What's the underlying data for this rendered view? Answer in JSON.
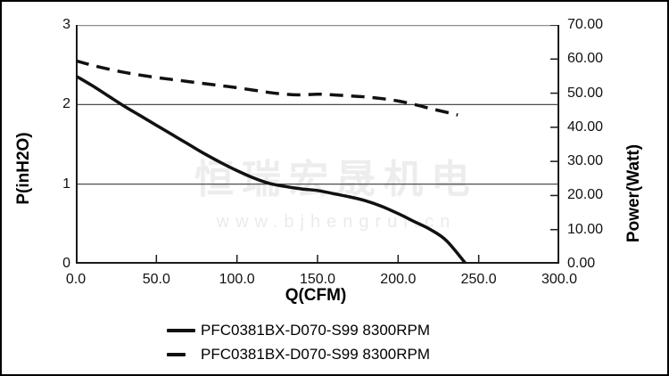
{
  "watermark": {
    "brand": "恒瑞宏晟机电",
    "url": "www.bjhengrui.cn"
  },
  "legend": {
    "items": [
      {
        "label": "PFC0381BX-D070-S99 8300RPM",
        "line_style": "solid"
      },
      {
        "label": "PFC0381BX-D070-S99 8300RPM",
        "line_style": "dashed"
      }
    ]
  },
  "chart_data": {
    "type": "line",
    "title": "",
    "grid": "horizontal gridlines at left-axis 1 and 2",
    "legend_position": "bottom",
    "x_axis": {
      "label": "Q(CFM)",
      "min": 0,
      "max": 300,
      "ticks": [
        0,
        50,
        100,
        150,
        200,
        250,
        300
      ],
      "tick_labels": [
        "0.0",
        "50.0",
        "100.0",
        "150.0",
        "200.0",
        "250.0",
        "300.0"
      ]
    },
    "y_left_axis": {
      "label": "P(inH2O)",
      "min": 0,
      "max": 3,
      "ticks": [
        3,
        2,
        1,
        0
      ],
      "tick_labels": [
        "3",
        "2",
        "1",
        "0"
      ],
      "gridline_values": [
        2,
        1
      ]
    },
    "y_right_axis": {
      "label": "Power(Watt)",
      "min": 0,
      "max": 70,
      "ticks": [
        70,
        60,
        50,
        40,
        30,
        20,
        10,
        0
      ],
      "tick_labels": [
        "70.00",
        "60.00",
        "50.00",
        "40.00",
        "30.00",
        "20.00",
        "10.00",
        "0.00"
      ]
    },
    "series": [
      {
        "name": "PFC0381BX-D070-S99 8300RPM (static pressure)",
        "axis": "left",
        "line_style": "solid",
        "color": "#111111",
        "points": [
          [
            0,
            2.36
          ],
          [
            10,
            2.24
          ],
          [
            20,
            2.11
          ],
          [
            30,
            1.98
          ],
          [
            40,
            1.86
          ],
          [
            50,
            1.74
          ],
          [
            60,
            1.62
          ],
          [
            70,
            1.5
          ],
          [
            80,
            1.38
          ],
          [
            90,
            1.27
          ],
          [
            100,
            1.17
          ],
          [
            110,
            1.08
          ],
          [
            120,
            1.01
          ],
          [
            130,
            0.97
          ],
          [
            140,
            0.94
          ],
          [
            150,
            0.92
          ],
          [
            160,
            0.88
          ],
          [
            170,
            0.84
          ],
          [
            180,
            0.79
          ],
          [
            190,
            0.72
          ],
          [
            200,
            0.63
          ],
          [
            210,
            0.53
          ],
          [
            220,
            0.43
          ],
          [
            230,
            0.29
          ],
          [
            242,
            0.0
          ]
        ]
      },
      {
        "name": "PFC0381BX-D070-S99 8300RPM (power)",
        "axis": "right",
        "line_style": "dashed",
        "color": "#111111",
        "points": [
          [
            0,
            59.5
          ],
          [
            10,
            58.2
          ],
          [
            20,
            57.1
          ],
          [
            30,
            56.1
          ],
          [
            40,
            55.3
          ],
          [
            50,
            54.6
          ],
          [
            60,
            54.0
          ],
          [
            70,
            53.4
          ],
          [
            80,
            52.8
          ],
          [
            90,
            52.2
          ],
          [
            100,
            51.6
          ],
          [
            110,
            50.9
          ],
          [
            120,
            50.2
          ],
          [
            130,
            49.7
          ],
          [
            140,
            49.5
          ],
          [
            150,
            49.7
          ],
          [
            160,
            49.5
          ],
          [
            170,
            49.2
          ],
          [
            180,
            48.9
          ],
          [
            190,
            48.4
          ],
          [
            200,
            47.7
          ],
          [
            210,
            46.7
          ],
          [
            220,
            45.5
          ],
          [
            230,
            44.4
          ],
          [
            237,
            43.6
          ]
        ]
      }
    ]
  }
}
